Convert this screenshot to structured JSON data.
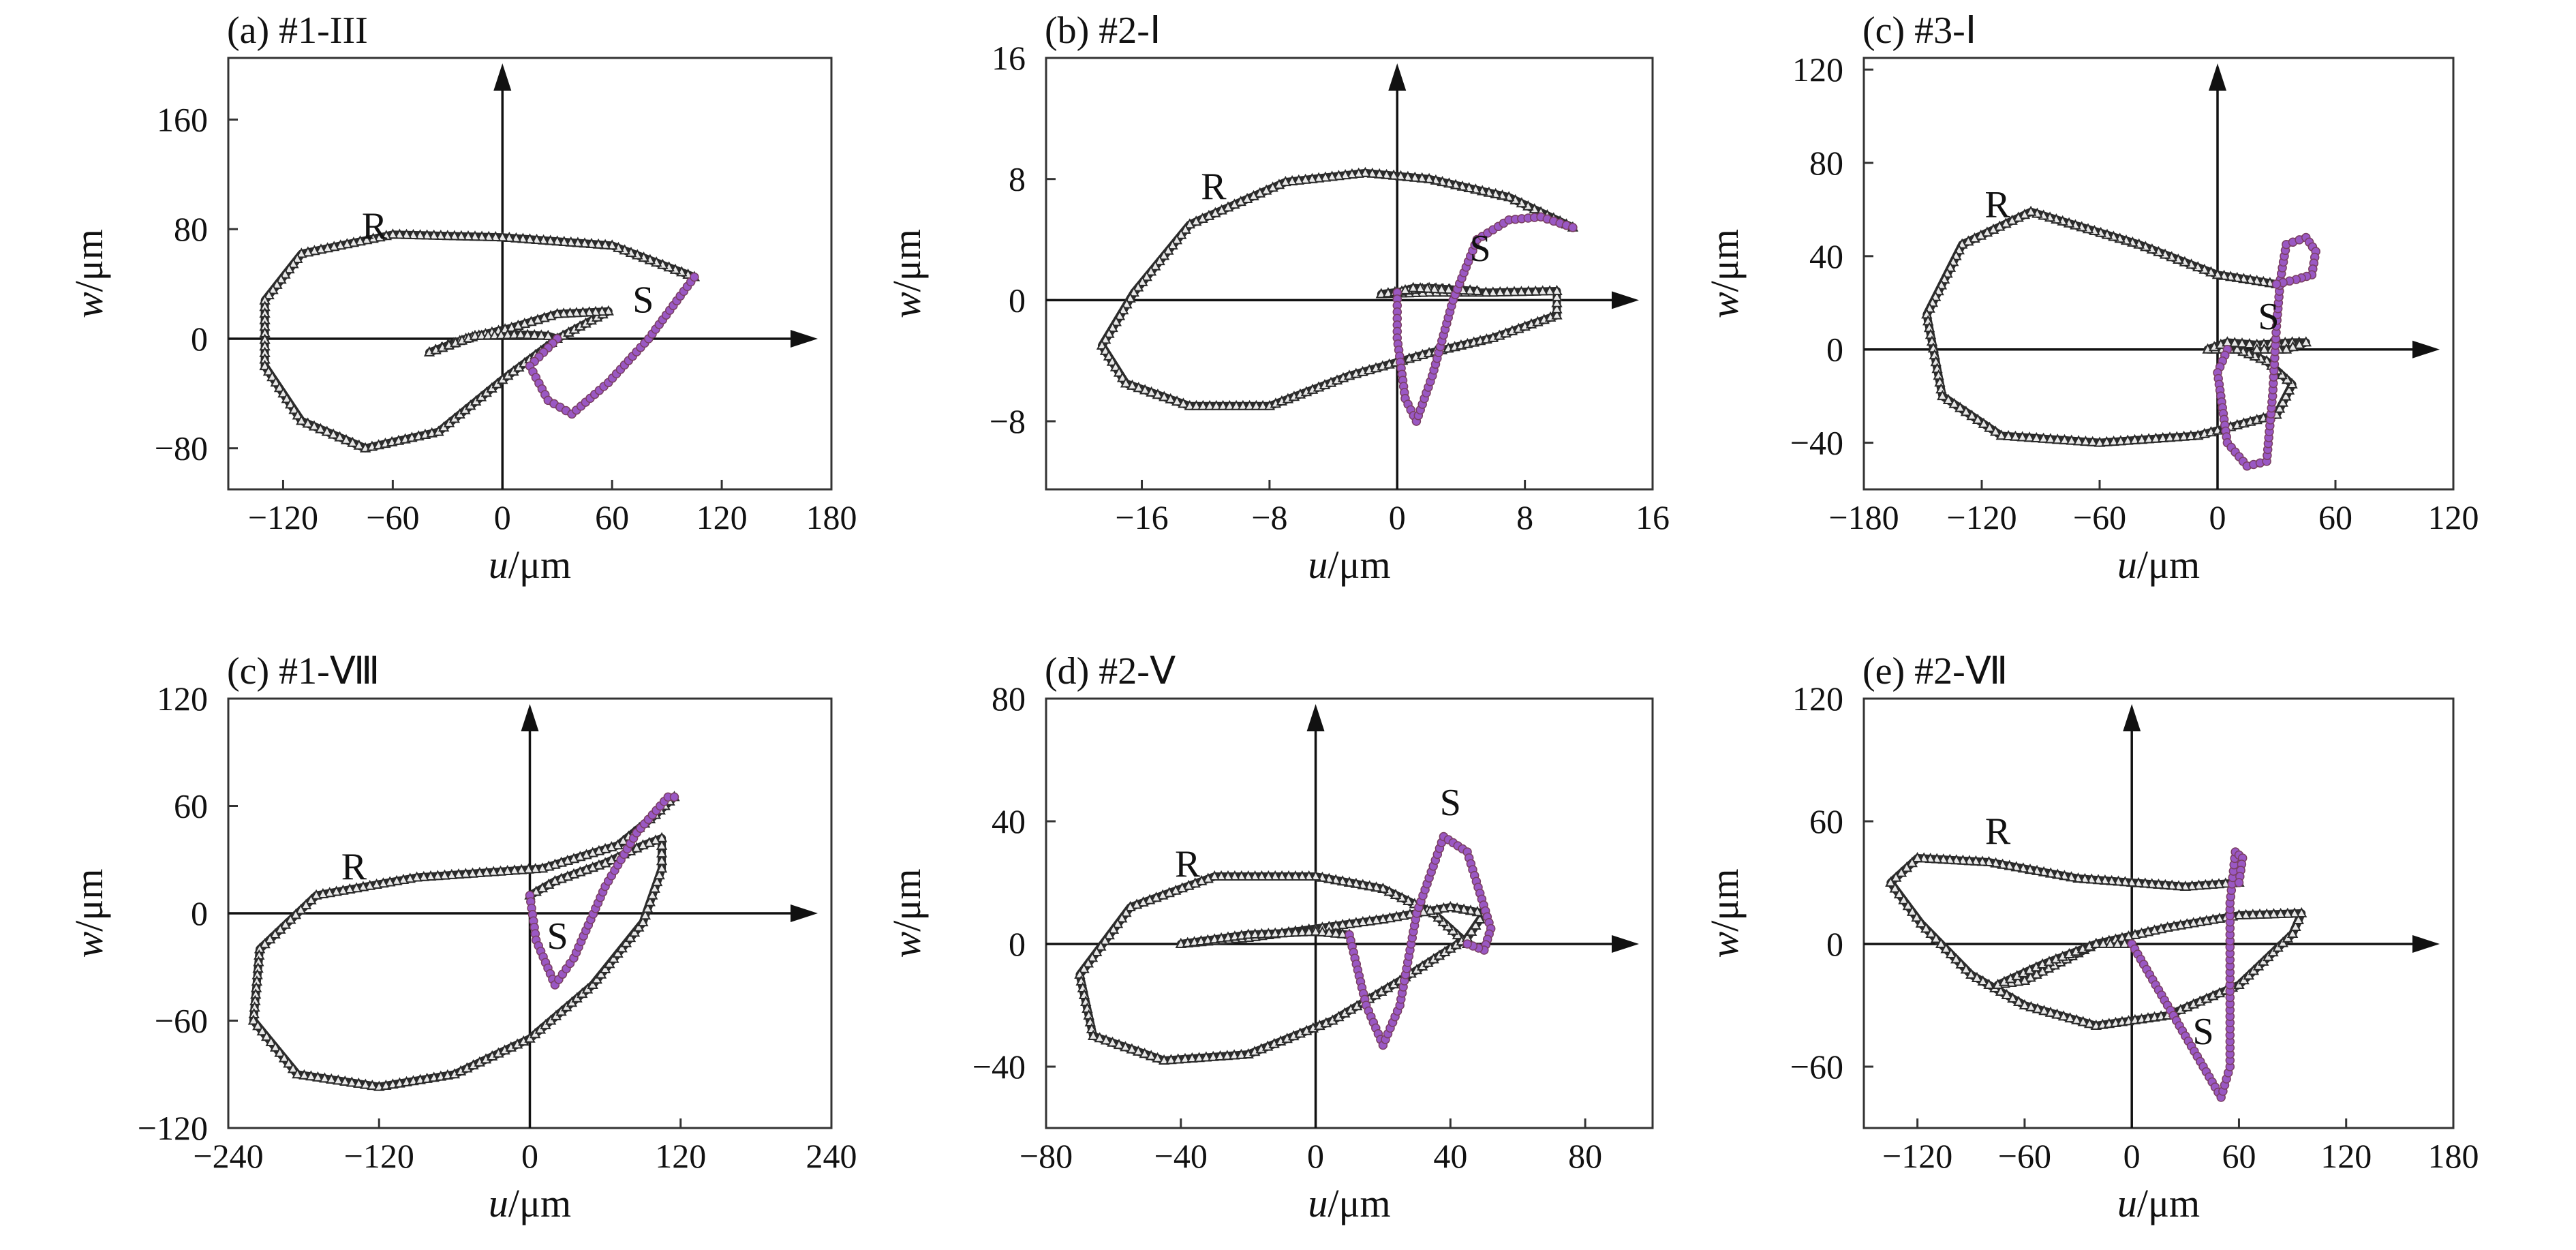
{
  "figure": {
    "colors": {
      "R": "#2b2b2b",
      "S_fill": "#9a58c4",
      "S_edge": "#7a3f63",
      "axis": "#111111",
      "frame": "#333333"
    },
    "marker_R": "open-triangle",
    "marker_S": "open-circle"
  },
  "chart_data": [
    {
      "type": "scatter",
      "title": "(a) #1-III",
      "xlabel": "u/μm",
      "ylabel": "w/μm",
      "xlim": [
        -150,
        180
      ],
      "ylim": [
        -110,
        205
      ],
      "xticks": [
        -120,
        -60,
        0,
        60,
        120,
        180
      ],
      "yticks": [
        -80,
        0,
        80,
        160
      ],
      "xticklabels": [
        "−120",
        "−60",
        "0",
        "60",
        "120",
        "180"
      ],
      "yticklabels": [
        "−80",
        "0",
        "80",
        "160"
      ],
      "annotations": [
        {
          "text": "R",
          "x": -70,
          "y": 82
        },
        {
          "text": "S",
          "x": 77,
          "y": 28
        }
      ],
      "series": [
        {
          "name": "R",
          "points": [
            [
              105,
              45
            ],
            [
              60,
              68
            ],
            [
              0,
              74
            ],
            [
              -60,
              76
            ],
            [
              -110,
              62
            ],
            [
              -130,
              28
            ],
            [
              -130,
              -20
            ],
            [
              -110,
              -60
            ],
            [
              -75,
              -80
            ],
            [
              -35,
              -68
            ],
            [
              0,
              -30
            ],
            [
              30,
              0
            ],
            [
              58,
              20
            ],
            [
              30,
              18
            ],
            [
              5,
              8
            ],
            [
              -20,
              0
            ],
            [
              -40,
              -10
            ],
            [
              -15,
              2
            ],
            [
              10,
              3
            ],
            [
              25,
              2
            ],
            [
              30,
              0
            ]
          ]
        },
        {
          "name": "S",
          "points": [
            [
              30,
              0
            ],
            [
              15,
              -20
            ],
            [
              25,
              -45
            ],
            [
              38,
              -55
            ],
            [
              58,
              -32
            ],
            [
              80,
              0
            ],
            [
              105,
              45
            ]
          ]
        }
      ]
    },
    {
      "type": "scatter",
      "title": "(b) #2-Ⅰ",
      "xlabel": "u/μm",
      "ylabel": "w/μm",
      "xlim": [
        -22,
        16
      ],
      "ylim": [
        -12.5,
        16
      ],
      "xticks": [
        -16,
        -8,
        0,
        8,
        16
      ],
      "yticks": [
        -8,
        0,
        8,
        16
      ],
      "xticklabels": [
        "−16",
        "−8",
        "0",
        "8",
        "16"
      ],
      "yticklabels": [
        "−8",
        "0",
        "8",
        "16"
      ],
      "annotations": [
        {
          "text": "R",
          "x": -11.5,
          "y": 7.5
        },
        {
          "text": "S",
          "x": 5.2,
          "y": 3.4
        }
      ],
      "series": [
        {
          "name": "R",
          "points": [
            [
              11,
              4.8
            ],
            [
              7,
              6.8
            ],
            [
              2,
              8.0
            ],
            [
              -2,
              8.4
            ],
            [
              -7,
              7.8
            ],
            [
              -13,
              5
            ],
            [
              -16.5,
              0.5
            ],
            [
              -18.5,
              -3
            ],
            [
              -17,
              -5.5
            ],
            [
              -13,
              -7
            ],
            [
              -8,
              -7
            ],
            [
              -3,
              -5
            ],
            [
              2,
              -3.5
            ],
            [
              6,
              -2.5
            ],
            [
              10,
              -1
            ],
            [
              10,
              0.6
            ],
            [
              6,
              0.5
            ],
            [
              2,
              0.5
            ],
            [
              -1,
              0.4
            ],
            [
              2,
              0.8
            ],
            [
              5,
              0.6
            ],
            [
              1,
              0.8
            ],
            [
              0,
              0.5
            ]
          ]
        },
        {
          "name": "S",
          "points": [
            [
              0,
              0.5
            ],
            [
              0,
              -2.5
            ],
            [
              0.5,
              -6.5
            ],
            [
              1.2,
              -8
            ],
            [
              2.2,
              -5
            ],
            [
              3.5,
              0
            ],
            [
              5,
              4
            ],
            [
              7,
              5.3
            ],
            [
              9,
              5.5
            ],
            [
              11,
              4.8
            ]
          ]
        }
      ]
    },
    {
      "type": "scatter",
      "title": "(c) #3-Ⅰ",
      "xlabel": "u/μm",
      "ylabel": "w/μm",
      "xlim": [
        -180,
        120
      ],
      "ylim": [
        -60,
        125
      ],
      "xticks": [
        -180,
        -120,
        -60,
        0,
        60,
        120
      ],
      "yticks": [
        -40,
        0,
        40,
        80,
        120
      ],
      "xticklabels": [
        "−180",
        "−120",
        "−60",
        "0",
        "60",
        "120"
      ],
      "yticklabels": [
        "−40",
        "0",
        "40",
        "80",
        "120"
      ],
      "annotations": [
        {
          "text": "R",
          "x": -112,
          "y": 62
        },
        {
          "text": "S",
          "x": 26,
          "y": 14
        }
      ],
      "series": [
        {
          "name": "R",
          "points": [
            [
              30,
              28
            ],
            [
              0,
              32
            ],
            [
              -40,
              45
            ],
            [
              -95,
              59
            ],
            [
              -130,
              45
            ],
            [
              -148,
              15
            ],
            [
              -140,
              -20
            ],
            [
              -110,
              -37
            ],
            [
              -60,
              -40
            ],
            [
              -10,
              -37
            ],
            [
              30,
              -28
            ],
            [
              38,
              -15
            ],
            [
              25,
              -5
            ],
            [
              10,
              0
            ],
            [
              -5,
              0
            ],
            [
              5,
              3
            ],
            [
              20,
              2
            ],
            [
              38,
              3
            ],
            [
              45,
              3
            ],
            [
              35,
              0
            ],
            [
              20,
              0
            ]
          ]
        },
        {
          "name": "S",
          "points": [
            [
              5,
              0
            ],
            [
              0,
              -10
            ],
            [
              5,
              -40
            ],
            [
              15,
              -50
            ],
            [
              25,
              -48
            ],
            [
              28,
              -20
            ],
            [
              30,
              10
            ],
            [
              32,
              30
            ],
            [
              35,
              45
            ],
            [
              45,
              48
            ],
            [
              50,
              42
            ],
            [
              48,
              32
            ],
            [
              40,
              30
            ],
            [
              30,
              28
            ]
          ]
        }
      ]
    },
    {
      "type": "scatter",
      "title": "(c) #1-Ⅷ",
      "xlabel": "u/μm",
      "ylabel": "w/μm",
      "xlim": [
        -240,
        240
      ],
      "ylim": [
        -120,
        120
      ],
      "xticks": [
        -240,
        -120,
        0,
        120,
        240
      ],
      "yticks": [
        -120,
        -60,
        0,
        60,
        120
      ],
      "xticklabels": [
        "−240",
        "−120",
        "0",
        "120",
        "240"
      ],
      "yticklabels": [
        "−120",
        "−60",
        "0",
        "60",
        "120"
      ],
      "annotations": [
        {
          "text": "R",
          "x": -140,
          "y": 26
        },
        {
          "text": "S",
          "x": 22,
          "y": -13
        }
      ],
      "series": [
        {
          "name": "R",
          "points": [
            [
              115,
              65
            ],
            [
              100,
              55
            ],
            [
              70,
              38
            ],
            [
              10,
              25
            ],
            [
              -90,
              20
            ],
            [
              -170,
              10
            ],
            [
              -215,
              -20
            ],
            [
              -220,
              -60
            ],
            [
              -185,
              -90
            ],
            [
              -120,
              -97
            ],
            [
              -60,
              -90
            ],
            [
              0,
              -70
            ],
            [
              50,
              -40
            ],
            [
              90,
              -5
            ],
            [
              105,
              25
            ],
            [
              105,
              42
            ],
            [
              90,
              38
            ],
            [
              60,
              28
            ],
            [
              20,
              18
            ],
            [
              0,
              10
            ]
          ]
        },
        {
          "name": "S",
          "points": [
            [
              0,
              10
            ],
            [
              5,
              -15
            ],
            [
              20,
              -40
            ],
            [
              35,
              -25
            ],
            [
              60,
              15
            ],
            [
              85,
              45
            ],
            [
              110,
              65
            ],
            [
              115,
              65
            ]
          ]
        }
      ]
    },
    {
      "type": "scatter",
      "title": "(d) #2-Ⅴ",
      "xlabel": "u/μm",
      "ylabel": "w/μm",
      "xlim": [
        -80,
        100
      ],
      "ylim": [
        -60,
        80
      ],
      "xticks": [
        -80,
        -40,
        0,
        40,
        80
      ],
      "yticks": [
        -40,
        0,
        40,
        80
      ],
      "xticklabels": [
        "−80",
        "−40",
        "0",
        "40",
        "80"
      ],
      "yticklabels": [
        "−40",
        "0",
        "40",
        "80"
      ],
      "annotations": [
        {
          "text": "R",
          "x": -38,
          "y": 26
        },
        {
          "text": "S",
          "x": 40,
          "y": 46
        }
      ],
      "series": [
        {
          "name": "R",
          "points": [
            [
              45,
              0
            ],
            [
              35,
              10
            ],
            [
              20,
              18
            ],
            [
              0,
              22
            ],
            [
              -30,
              22
            ],
            [
              -55,
              12
            ],
            [
              -70,
              -10
            ],
            [
              -66,
              -30
            ],
            [
              -45,
              -38
            ],
            [
              -20,
              -36
            ],
            [
              5,
              -25
            ],
            [
              25,
              -12
            ],
            [
              45,
              2
            ],
            [
              50,
              10
            ],
            [
              40,
              12
            ],
            [
              20,
              8
            ],
            [
              0,
              5
            ],
            [
              -20,
              2
            ],
            [
              -40,
              0
            ],
            [
              -20,
              3
            ],
            [
              0,
              4
            ],
            [
              10,
              3
            ]
          ]
        },
        {
          "name": "S",
          "points": [
            [
              10,
              3
            ],
            [
              15,
              -20
            ],
            [
              20,
              -33
            ],
            [
              25,
              -20
            ],
            [
              30,
              10
            ],
            [
              38,
              35
            ],
            [
              45,
              30
            ],
            [
              52,
              5
            ],
            [
              50,
              -2
            ],
            [
              45,
              0
            ]
          ]
        }
      ]
    },
    {
      "type": "scatter",
      "title": "(e) #2-Ⅶ",
      "xlabel": "u/μm",
      "ylabel": "w/μm",
      "xlim": [
        -150,
        180
      ],
      "ylim": [
        -90,
        120
      ],
      "xticks": [
        -120,
        -60,
        0,
        60,
        120,
        180
      ],
      "yticks": [
        -60,
        0,
        60,
        120
      ],
      "xticklabels": [
        "−120",
        "−60",
        "0",
        "60",
        "120",
        "180"
      ],
      "yticklabels": [
        "−60",
        "0",
        "60",
        "120"
      ],
      "annotations": [
        {
          "text": "R",
          "x": -75,
          "y": 55
        },
        {
          "text": "S",
          "x": 40,
          "y": -43
        }
      ],
      "series": [
        {
          "name": "R",
          "points": [
            [
              60,
              30
            ],
            [
              30,
              28
            ],
            [
              -30,
              32
            ],
            [
              -80,
              40
            ],
            [
              -120,
              42
            ],
            [
              -135,
              30
            ],
            [
              -118,
              10
            ],
            [
              -90,
              -15
            ],
            [
              -60,
              -30
            ],
            [
              -20,
              -40
            ],
            [
              20,
              -35
            ],
            [
              60,
              -20
            ],
            [
              90,
              5
            ],
            [
              95,
              15
            ],
            [
              60,
              14
            ],
            [
              20,
              8
            ],
            [
              -20,
              0
            ],
            [
              -60,
              -18
            ],
            [
              -75,
              -20
            ],
            [
              -50,
              -10
            ],
            [
              -20,
              0
            ],
            [
              0,
              0
            ]
          ]
        },
        {
          "name": "S",
          "points": [
            [
              0,
              0
            ],
            [
              20,
              -30
            ],
            [
              40,
              -60
            ],
            [
              50,
              -75
            ],
            [
              55,
              -60
            ],
            [
              55,
              -20
            ],
            [
              55,
              20
            ],
            [
              58,
              45
            ],
            [
              62,
              42
            ],
            [
              60,
              30
            ]
          ]
        }
      ]
    }
  ]
}
